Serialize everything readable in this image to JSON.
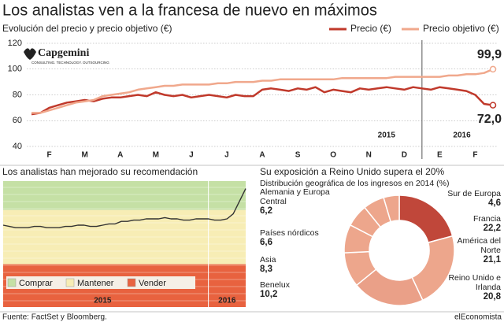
{
  "chart_data": [
    {
      "type": "line",
      "title": "Los analistas ven a la francesa de nuevo en máximos",
      "subtitle": "Evolución del precio y precio objetivo (€)",
      "logo": "Capgemini",
      "logo_tagline": "CONSULTING. TECHNOLOGY. OUTSOURCING",
      "categories": [
        null,
        null,
        "F",
        null,
        null,
        null,
        "M",
        null,
        null,
        null,
        "A",
        null,
        null,
        null,
        "M",
        null,
        null,
        null,
        "J",
        null,
        null,
        null,
        "J",
        null,
        null,
        null,
        "A",
        null,
        null,
        null,
        "S",
        null,
        null,
        null,
        "O",
        null,
        null,
        null,
        "N",
        null,
        null,
        null,
        "D",
        null,
        null,
        null,
        "E",
        null,
        null,
        null,
        "F",
        null,
        null
      ],
      "year_labels": [
        "2015",
        "2016"
      ],
      "series": [
        {
          "name": "Precio (€)",
          "color": "#c0392b",
          "values": [
            65,
            66,
            70,
            72,
            74,
            75,
            76,
            75,
            77,
            78,
            78,
            79,
            80,
            79,
            82,
            80,
            79,
            80,
            78,
            79,
            80,
            79,
            78,
            80,
            79,
            79,
            84,
            85,
            84,
            83,
            85,
            84,
            86,
            82,
            84,
            83,
            82,
            85,
            84,
            85,
            86,
            85,
            84,
            86,
            85,
            84,
            86,
            85,
            84,
            83,
            80,
            73,
            72.0
          ],
          "value_labels": [
            null,
            null,
            null,
            null,
            null,
            null,
            null,
            null,
            null,
            null,
            null,
            null,
            null,
            null,
            null,
            null,
            null,
            null,
            null,
            null,
            null,
            null,
            null,
            null,
            null,
            null,
            null,
            null,
            null,
            null,
            null,
            null,
            null,
            null,
            null,
            null,
            null,
            null,
            null,
            null,
            null,
            null,
            null,
            null,
            null,
            null,
            null,
            null,
            null,
            null,
            null,
            null,
            "72,0"
          ]
        },
        {
          "name": "Precio objetivo (€)",
          "color": "#f0a88c",
          "values": [
            66,
            66,
            68,
            70,
            72,
            74,
            75,
            76,
            79,
            80,
            81,
            82,
            84,
            85,
            86,
            87,
            87,
            88,
            88,
            88,
            88,
            89,
            89,
            90,
            90,
            90,
            91,
            91,
            92,
            92,
            92,
            92,
            92,
            92,
            92,
            93,
            93,
            93,
            93,
            93,
            93,
            94,
            94,
            94,
            94,
            94,
            94,
            95,
            95,
            96,
            96,
            97,
            99.9
          ],
          "value_labels": [
            null,
            null,
            null,
            null,
            null,
            null,
            null,
            null,
            null,
            null,
            null,
            null,
            null,
            null,
            null,
            null,
            null,
            null,
            null,
            null,
            null,
            null,
            null,
            null,
            null,
            null,
            null,
            null,
            null,
            null,
            null,
            null,
            null,
            null,
            null,
            null,
            null,
            null,
            null,
            null,
            null,
            null,
            null,
            null,
            null,
            null,
            null,
            null,
            null,
            null,
            null,
            null,
            "99,9"
          ]
        }
      ],
      "ylim": [
        40,
        120
      ],
      "yticks": [
        40,
        60,
        80,
        100,
        120
      ],
      "grid": true
    },
    {
      "type": "line",
      "title": "Los analistas han mejorado su recomendación",
      "categories": [
        null,
        null,
        null,
        null,
        null,
        null,
        null,
        null,
        null,
        null,
        null,
        null,
        null,
        null,
        null,
        null,
        "2015",
        null,
        null,
        null,
        null,
        null,
        null,
        null,
        null,
        null,
        null,
        null,
        null,
        null,
        null,
        null,
        null,
        null,
        null,
        null,
        "2016",
        null,
        null,
        null
      ],
      "series": [
        {
          "color": "#333333",
          "values": [
            65,
            64,
            63,
            63,
            63,
            64,
            64,
            63,
            63,
            63,
            64,
            64,
            65,
            65,
            64,
            64,
            65,
            66,
            66,
            68,
            68,
            69,
            69,
            70,
            70,
            70,
            71,
            70,
            70,
            69,
            69,
            70,
            70,
            70,
            69,
            69,
            70,
            74,
            84,
            94
          ]
        }
      ],
      "ylim": [
        0,
        100
      ],
      "bands": [
        {
          "name": "Comprar",
          "color": "#c5e0a5",
          "from": 77,
          "to": 100
        },
        {
          "name": "Mantener",
          "color": "#f7edb5",
          "from": 34,
          "to": 77
        },
        {
          "name": "Vender",
          "color": "#e8623f",
          "from": 0,
          "to": 34
        }
      ]
    },
    {
      "type": "pie",
      "title": "Su exposición a Reino Unido supera el 20%",
      "subtitle": "Distribución geográfica de los ingresos en 2014 (%)",
      "categories": [
        "Reino Unido e Irlanda",
        "Francia",
        "América del Norte",
        "Benelux",
        "Asia",
        "Países nórdicos",
        "Alemania y Europa Central",
        "Sur de Europa"
      ],
      "values": [
        20.8,
        22.2,
        21.1,
        10.2,
        8.3,
        6.6,
        6.2,
        4.6
      ],
      "value_labels": [
        "20,8",
        "22,2",
        "21,1",
        "10,2",
        "8,3",
        "6,6",
        "6,2",
        "4,6"
      ],
      "colors": [
        "#c0473a",
        "#eda68c",
        "#eaa088",
        "#eda68c",
        "#eda68c",
        "#eda68c",
        "#eda68c",
        "#eda68c"
      ]
    }
  ],
  "source": "Fuente: FactSet y Bloomberg.",
  "brand": "elEconomista"
}
